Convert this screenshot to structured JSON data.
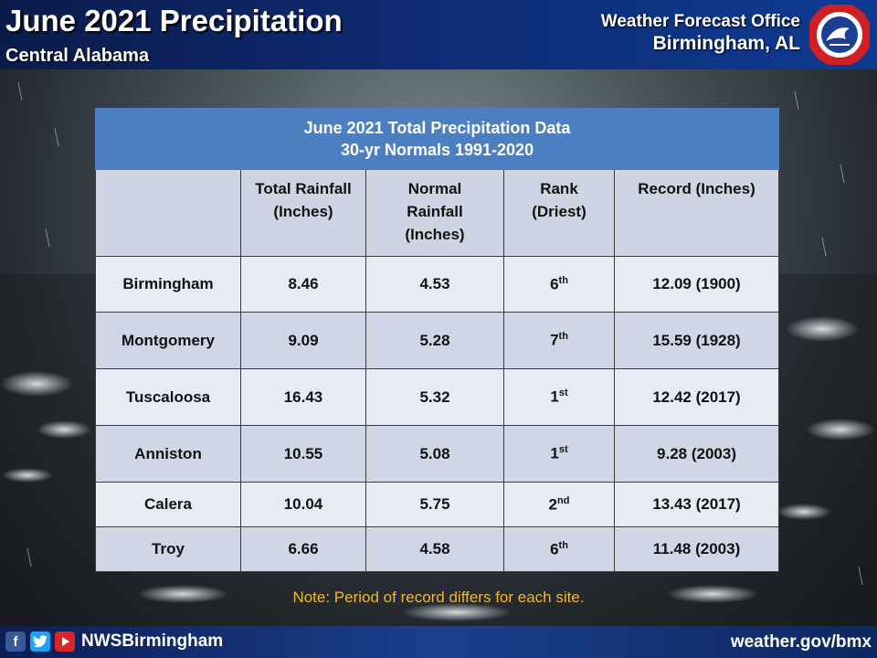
{
  "header": {
    "title": "June 2021 Precipitation",
    "subtitle": "Central Alabama",
    "office_label": "Weather Forecast Office",
    "office_city": "Birmingham, AL",
    "logo_text": "NATIONAL WEATHER SERVICE"
  },
  "table": {
    "title_line1": "June 2021 Total Precipitation Data",
    "title_line2": "30-yr Normals 1991-2020",
    "columns": {
      "total": [
        "Total Rainfall",
        "(Inches)"
      ],
      "normal": [
        "Normal",
        "Rainfall",
        "(Inches)"
      ],
      "rank": [
        "Rank",
        "(Driest)"
      ],
      "record": [
        "Record (Inches)"
      ]
    },
    "rows": [
      {
        "site": "Birmingham",
        "total": "8.46",
        "normal": "4.53",
        "rank_num": "6",
        "rank_suffix": "th",
        "record": "12.09 (1900)"
      },
      {
        "site": "Montgomery",
        "total": "9.09",
        "normal": "5.28",
        "rank_num": "7",
        "rank_suffix": "th",
        "record": "15.59 (1928)"
      },
      {
        "site": "Tuscaloosa",
        "total": "16.43",
        "normal": "5.32",
        "rank_num": "1",
        "rank_suffix": "st",
        "record": "12.42 (2017)"
      },
      {
        "site": "Anniston",
        "total": "10.55",
        "normal": "5.08",
        "rank_num": "1",
        "rank_suffix": "st",
        "record": "9.28 (2003)"
      },
      {
        "site": "Calera",
        "total": "10.04",
        "normal": "5.75",
        "rank_num": "2",
        "rank_suffix": "nd",
        "record": "13.43 (2017)"
      },
      {
        "site": "Troy",
        "total": "6.66",
        "normal": "4.58",
        "rank_num": "6",
        "rank_suffix": "th",
        "record": "11.48 (2003)"
      }
    ]
  },
  "note": "Note: Period of record differs for each site.",
  "footer": {
    "social_icons": [
      "facebook-icon",
      "twitter-icon",
      "youtube-icon"
    ],
    "handle": "NWSBirmingham",
    "website": "weather.gov/bmx"
  },
  "colors": {
    "header_bar": "#0f2a73",
    "table_title_bg": "#4b7fc2",
    "row_light": "#e9ebf4",
    "row_dark": "#d0d6e6",
    "rank_highlight": "#e0101b",
    "note_text": "#f2b632"
  }
}
